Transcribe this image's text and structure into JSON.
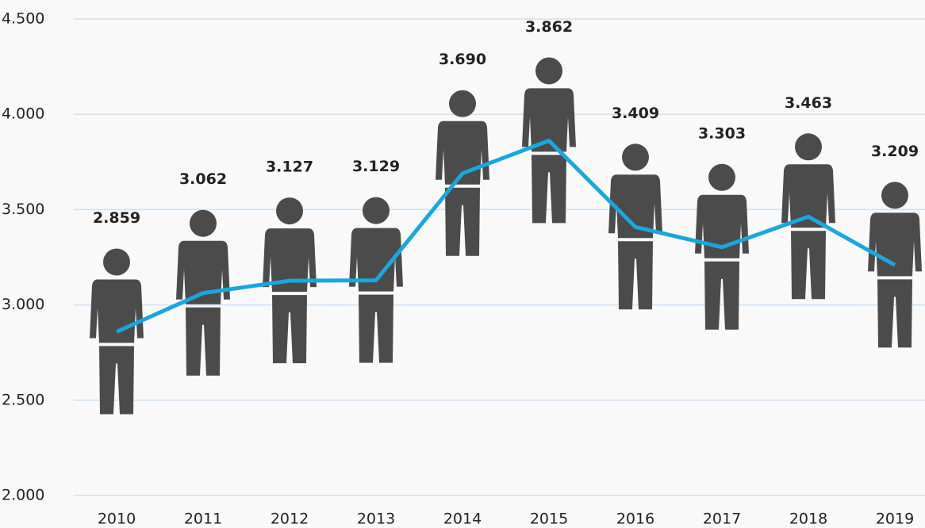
{
  "chart_data": {
    "type": "line",
    "categories": [
      "2010",
      "2011",
      "2012",
      "2013",
      "2014",
      "2015",
      "2016",
      "2017",
      "2018",
      "2019"
    ],
    "values": [
      2859,
      3062,
      3127,
      3129,
      3690,
      3862,
      3409,
      3303,
      3463,
      3209
    ],
    "value_labels": [
      "2.859",
      "3.062",
      "3.127",
      "3.129",
      "3.690",
      "3.862",
      "3.409",
      "3.303",
      "3.463",
      "3.209"
    ],
    "color": "#1aa6de",
    "icon_color": "#4b4b4b",
    "ylim": [
      2000,
      4500
    ],
    "yticks": [
      {
        "value": 2000,
        "label": "2.000"
      },
      {
        "value": 2500,
        "label": "2.500"
      },
      {
        "value": 3000,
        "label": "3.000"
      },
      {
        "value": 3500,
        "label": "3.500"
      },
      {
        "value": 4000,
        "label": "4.000"
      },
      {
        "value": 4500,
        "label": "4.500"
      }
    ],
    "grid": true
  }
}
